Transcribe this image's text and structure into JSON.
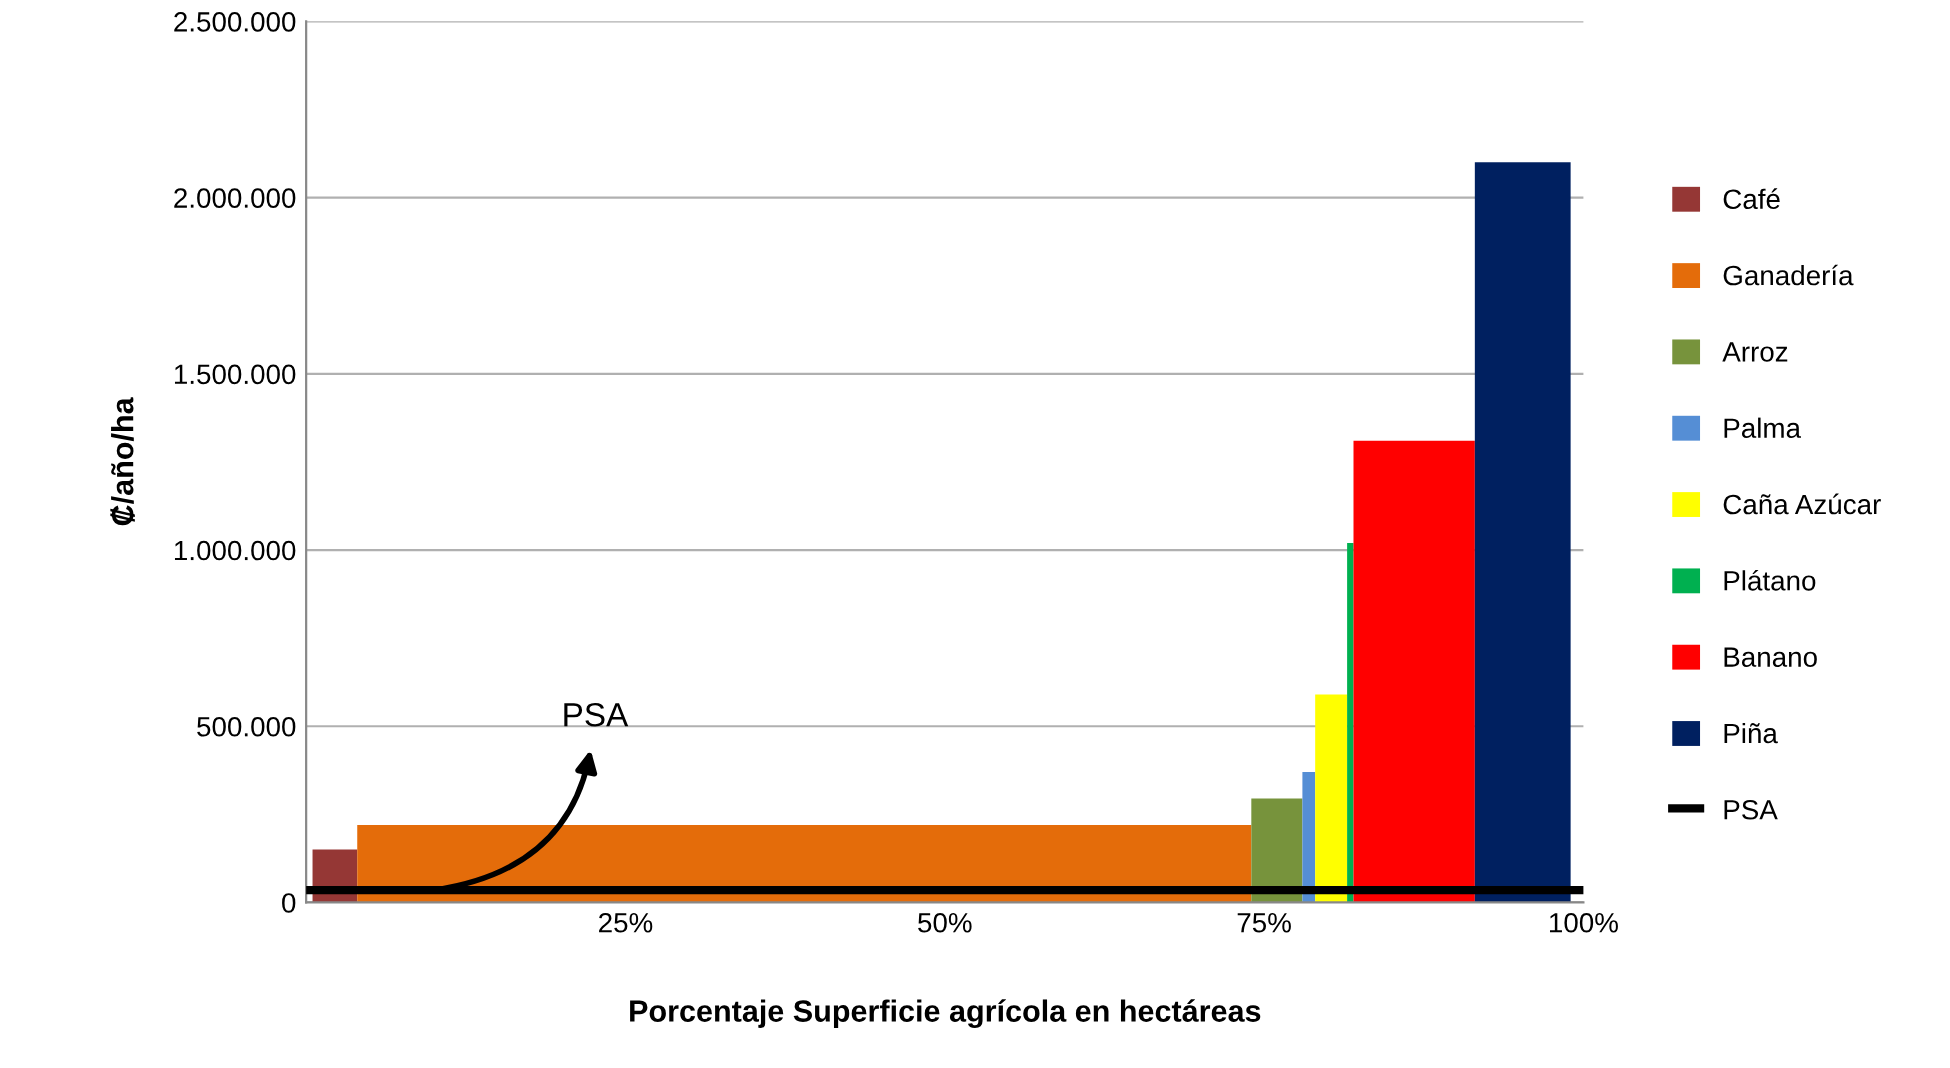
{
  "chart_data": {
    "type": "area",
    "xlabel": "Porcentaje Superficie agrícola en hectáreas",
    "ylabel": "₡/año/ha",
    "series": [
      {
        "name": "Café",
        "color": "#953735",
        "x": [
          0.5,
          4
        ],
        "values": [
          150000,
          150000
        ]
      },
      {
        "name": "Ganadería",
        "color": "#e46c0a",
        "x": [
          4,
          74
        ],
        "values": [
          220000,
          220000
        ]
      },
      {
        "name": "Arroz",
        "color": "#77933c",
        "x": [
          74,
          78
        ],
        "values": [
          295000,
          295000
        ]
      },
      {
        "name": "Palma",
        "color": "#558ed5",
        "x": [
          78,
          79
        ],
        "values": [
          370000,
          370000
        ]
      },
      {
        "name": "Caña Azúcar",
        "color": "#ffff00",
        "x": [
          79,
          81.5
        ],
        "values": [
          590000,
          590000
        ]
      },
      {
        "name": "Plátano",
        "color": "#00b050",
        "x": [
          81.5,
          82
        ],
        "values": [
          1020000,
          1020000
        ]
      },
      {
        "name": "Banano",
        "color": "#ff0000",
        "x": [
          82,
          91.5
        ],
        "values": [
          1310000,
          1310000
        ]
      },
      {
        "name": "Piña",
        "color": "#002060",
        "x": [
          91.5,
          99
        ],
        "values": [
          2100000,
          2100000
        ]
      },
      {
        "name": "PSA",
        "type": "line",
        "color": "#000000",
        "x": [
          0,
          100
        ],
        "values": [
          35000,
          35000
        ]
      }
    ],
    "annotations": [
      {
        "text": "PSA",
        "x": 10,
        "y": 35000
      }
    ],
    "xlim": [
      0,
      100
    ],
    "xticks": [
      {
        "value": 25,
        "label": "25%"
      },
      {
        "value": 50,
        "label": "50%"
      },
      {
        "value": 75,
        "label": "75%"
      },
      {
        "value": 100,
        "label": "100%"
      }
    ],
    "ylim": [
      0,
      2500000
    ],
    "yticks": [
      0,
      {
        "value": 500000,
        "label": "500.000"
      },
      {
        "value": 1000000,
        "label": "1.000.000"
      },
      {
        "value": 1500000,
        "label": "1.500.000"
      },
      {
        "value": 2000000,
        "label": "2.000.000"
      },
      {
        "value": 2500000,
        "label": "2.500.000"
      }
    ],
    "grid": "y",
    "legend": "right"
  }
}
